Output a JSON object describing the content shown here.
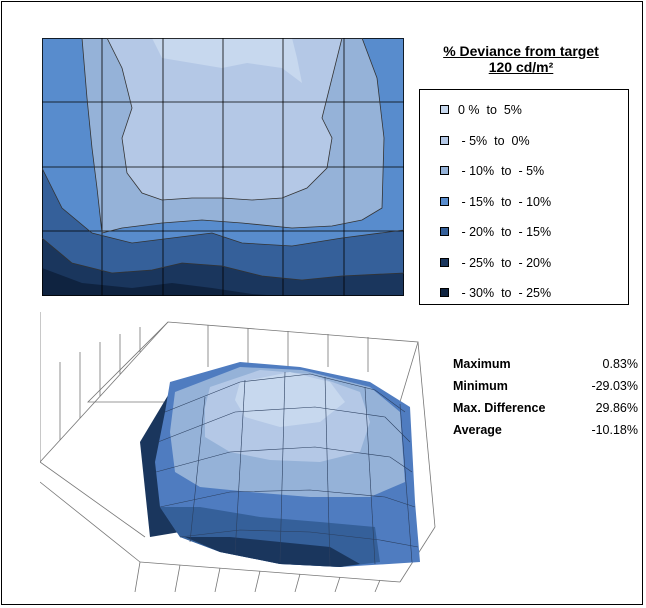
{
  "chart_data": [
    {
      "type": "contour",
      "title": "% Deviance from target",
      "subtitle": "120 cd/m²",
      "colors": [
        "#c7d8ee",
        "#b4c8e6",
        "#95b2d8",
        "#588ccd",
        "#35609a",
        "#1a365d",
        "#0f2340"
      ],
      "legend": [
        {
          "label": "0 %  to  5%",
          "color": "#c7d8ee"
        },
        {
          "label": " - 5%  to  0%",
          "color": "#b4c8e6"
        },
        {
          "label": " - 10%  to  - 5%",
          "color": "#95b2d8"
        },
        {
          "label": " - 15%  to  - 10%",
          "color": "#588ccd"
        },
        {
          "label": " - 20%  to  - 15%",
          "color": "#35609a"
        },
        {
          "label": " - 25%  to  - 20%",
          "color": "#1a365d"
        },
        {
          "label": " - 30%  to  - 25%",
          "color": "#0f2340"
        }
      ],
      "grid": true
    },
    {
      "type": "surface",
      "grid": true
    }
  ],
  "stats": [
    {
      "label": "Maximum",
      "value": "0.83%"
    },
    {
      "label": "Minimum",
      "value": "-29.03%"
    },
    {
      "label": "Max. Difference",
      "value": "29.86%"
    },
    {
      "label": "Average",
      "value": "-10.18%"
    }
  ]
}
